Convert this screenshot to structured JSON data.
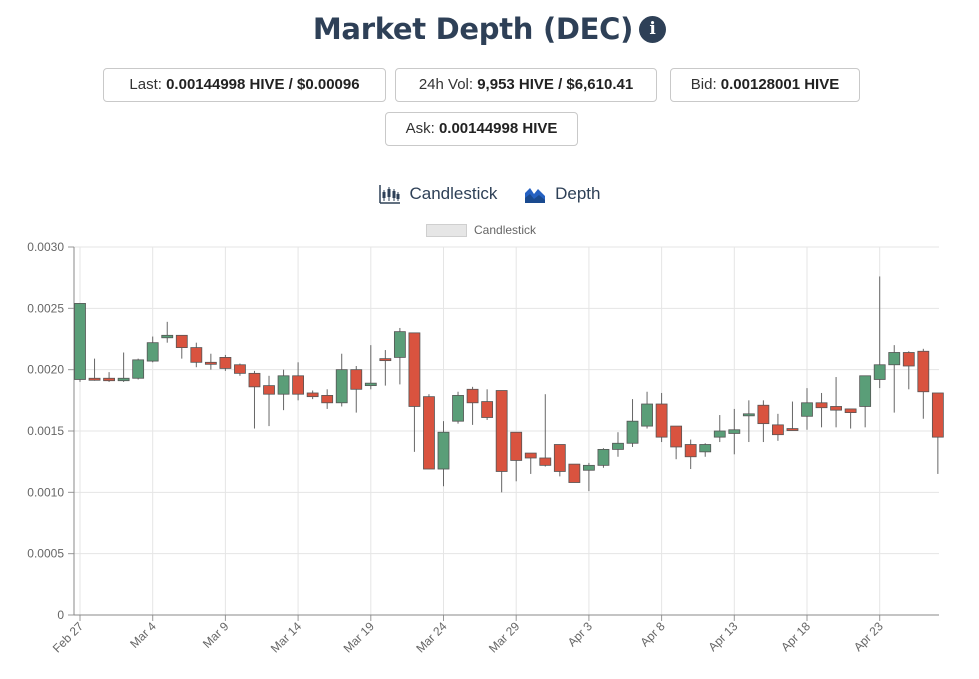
{
  "header": {
    "title": "Market Depth (DEC)",
    "info_icon": "info-circle-icon"
  },
  "stats": {
    "last_label": "Last:",
    "last_value": "0.00144998 HIVE / $0.00096",
    "vol_label": "24h Vol:",
    "vol_value": "9,953 HIVE / $6,610.41",
    "bid_label": "Bid:",
    "bid_value": "0.00128001 HIVE",
    "ask_label": "Ask:",
    "ask_value": "0.00144998 HIVE"
  },
  "tabs": {
    "candlestick_label": "Candlestick",
    "candlestick_icon": "candlestick-chart-icon",
    "depth_label": "Depth",
    "depth_icon": "area-chart-icon"
  },
  "colors": {
    "up": "#5a9e78",
    "down": "#d9533f",
    "wick": "#666666",
    "title": "#2e4057",
    "grid": "#e5e5e5"
  },
  "chart_data": {
    "type": "candlestick",
    "legend": [
      "Candlestick"
    ],
    "legend_position": "top-center",
    "grid": true,
    "ylim": [
      0,
      0.003
    ],
    "y_ticks": [
      "0.0030",
      "0.0025",
      "0.0020",
      "0.0015",
      "0.0010",
      "0.0005",
      "0"
    ],
    "x_tick_labels": [
      "Feb 27",
      "Mar 4",
      "Mar 9",
      "Mar 14",
      "Mar 19",
      "Mar 24",
      "Mar 29",
      "Apr 3",
      "Apr 8",
      "Apr 13",
      "Apr 18",
      "Apr 23"
    ],
    "x_tick_every": 5,
    "candles": [
      {
        "date": "Feb 27",
        "o": 0.00192,
        "h": 0.00254,
        "l": 0.0019,
        "c": 0.00254
      },
      {
        "date": "Feb 28",
        "o": 0.00193,
        "h": 0.00209,
        "l": 0.00191,
        "c": 0.00192
      },
      {
        "date": "Mar 1",
        "o": 0.00193,
        "h": 0.00198,
        "l": 0.0019,
        "c": 0.00191
      },
      {
        "date": "Mar 2",
        "o": 0.00191,
        "h": 0.00214,
        "l": 0.0019,
        "c": 0.00193
      },
      {
        "date": "Mar 3",
        "o": 0.00193,
        "h": 0.00209,
        "l": 0.00192,
        "c": 0.00208
      },
      {
        "date": "Mar 4",
        "o": 0.00207,
        "h": 0.00227,
        "l": 0.00206,
        "c": 0.00222
      },
      {
        "date": "Mar 5",
        "o": 0.00226,
        "h": 0.00239,
        "l": 0.00222,
        "c": 0.00228
      },
      {
        "date": "Mar 6",
        "o": 0.00228,
        "h": 0.00228,
        "l": 0.00209,
        "c": 0.00218
      },
      {
        "date": "Mar 7",
        "o": 0.00218,
        "h": 0.00222,
        "l": 0.00202,
        "c": 0.00206
      },
      {
        "date": "Mar 8",
        "o": 0.00206,
        "h": 0.00213,
        "l": 0.002,
        "c": 0.00205
      },
      {
        "date": "Mar 9",
        "o": 0.0021,
        "h": 0.00212,
        "l": 0.00199,
        "c": 0.00201
      },
      {
        "date": "Mar 10",
        "o": 0.00204,
        "h": 0.00205,
        "l": 0.00195,
        "c": 0.00197
      },
      {
        "date": "Mar 11",
        "o": 0.00197,
        "h": 0.00199,
        "l": 0.00152,
        "c": 0.00186
      },
      {
        "date": "Mar 12",
        "o": 0.00187,
        "h": 0.00195,
        "l": 0.00154,
        "c": 0.0018
      },
      {
        "date": "Mar 13",
        "o": 0.0018,
        "h": 0.002,
        "l": 0.00167,
        "c": 0.00195
      },
      {
        "date": "Mar 14",
        "o": 0.00195,
        "h": 0.00206,
        "l": 0.00175,
        "c": 0.0018
      },
      {
        "date": "Mar 15",
        "o": 0.00181,
        "h": 0.00183,
        "l": 0.00176,
        "c": 0.00178
      },
      {
        "date": "Mar 16",
        "o": 0.00179,
        "h": 0.00184,
        "l": 0.00168,
        "c": 0.00173
      },
      {
        "date": "Mar 17",
        "o": 0.00173,
        "h": 0.00213,
        "l": 0.0017,
        "c": 0.002
      },
      {
        "date": "Mar 18",
        "o": 0.002,
        "h": 0.00203,
        "l": 0.00165,
        "c": 0.00184
      },
      {
        "date": "Mar 19",
        "o": 0.00187,
        "h": 0.0022,
        "l": 0.00184,
        "c": 0.00189
      },
      {
        "date": "Mar 20",
        "o": 0.00209,
        "h": 0.00216,
        "l": 0.00187,
        "c": 0.00208
      },
      {
        "date": "Mar 21",
        "o": 0.0021,
        "h": 0.00234,
        "l": 0.00188,
        "c": 0.00231
      },
      {
        "date": "Mar 22",
        "o": 0.0023,
        "h": 0.0023,
        "l": 0.00133,
        "c": 0.0017
      },
      {
        "date": "Mar 23",
        "o": 0.00178,
        "h": 0.0018,
        "l": 0.00119,
        "c": 0.00119
      },
      {
        "date": "Mar 24",
        "o": 0.00119,
        "h": 0.00158,
        "l": 0.00105,
        "c": 0.00149
      },
      {
        "date": "Mar 25",
        "o": 0.00158,
        "h": 0.00182,
        "l": 0.00156,
        "c": 0.00179
      },
      {
        "date": "Mar 26",
        "o": 0.00184,
        "h": 0.00186,
        "l": 0.00155,
        "c": 0.00173
      },
      {
        "date": "Mar 27",
        "o": 0.00174,
        "h": 0.00184,
        "l": 0.00159,
        "c": 0.00161
      },
      {
        "date": "Mar 28",
        "o": 0.00183,
        "h": 0.00183,
        "l": 0.001,
        "c": 0.00117
      },
      {
        "date": "Mar 29",
        "o": 0.00149,
        "h": 0.00149,
        "l": 0.00109,
        "c": 0.00126
      },
      {
        "date": "Mar 30",
        "o": 0.00132,
        "h": 0.00132,
        "l": 0.00115,
        "c": 0.00128
      },
      {
        "date": "Mar 31",
        "o": 0.00128,
        "h": 0.0018,
        "l": 0.00121,
        "c": 0.00122
      },
      {
        "date": "Apr 1",
        "o": 0.00139,
        "h": 0.00139,
        "l": 0.00113,
        "c": 0.00117
      },
      {
        "date": "Apr 2",
        "o": 0.00123,
        "h": 0.00123,
        "l": 0.00108,
        "c": 0.00108
      },
      {
        "date": "Apr 3",
        "o": 0.00118,
        "h": 0.00124,
        "l": 0.00101,
        "c": 0.00122
      },
      {
        "date": "Apr 4",
        "o": 0.00122,
        "h": 0.00136,
        "l": 0.0012,
        "c": 0.00135
      },
      {
        "date": "Apr 5",
        "o": 0.00135,
        "h": 0.00149,
        "l": 0.00129,
        "c": 0.0014
      },
      {
        "date": "Apr 6",
        "o": 0.0014,
        "h": 0.00176,
        "l": 0.00137,
        "c": 0.00158
      },
      {
        "date": "Apr 7",
        "o": 0.00154,
        "h": 0.00182,
        "l": 0.00152,
        "c": 0.00172
      },
      {
        "date": "Apr 8",
        "o": 0.00172,
        "h": 0.00181,
        "l": 0.00141,
        "c": 0.00145
      },
      {
        "date": "Apr 9",
        "o": 0.00154,
        "h": 0.00154,
        "l": 0.00127,
        "c": 0.00137
      },
      {
        "date": "Apr 10",
        "o": 0.00139,
        "h": 0.00143,
        "l": 0.00119,
        "c": 0.00129
      },
      {
        "date": "Apr 11",
        "o": 0.00133,
        "h": 0.0014,
        "l": 0.00129,
        "c": 0.00139
      },
      {
        "date": "Apr 12",
        "o": 0.00145,
        "h": 0.00163,
        "l": 0.00141,
        "c": 0.0015
      },
      {
        "date": "Apr 13",
        "o": 0.00148,
        "h": 0.00168,
        "l": 0.00131,
        "c": 0.00151
      },
      {
        "date": "Apr 14",
        "o": 0.00164,
        "h": 0.00175,
        "l": 0.00141,
        "c": 0.00164
      },
      {
        "date": "Apr 15",
        "o": 0.00171,
        "h": 0.00175,
        "l": 0.00141,
        "c": 0.00156
      },
      {
        "date": "Apr 16",
        "o": 0.00155,
        "h": 0.00164,
        "l": 0.00142,
        "c": 0.00147
      },
      {
        "date": "Apr 17",
        "o": 0.00152,
        "h": 0.00174,
        "l": 0.00151,
        "c": 0.00151
      },
      {
        "date": "Apr 18",
        "o": 0.00162,
        "h": 0.00185,
        "l": 0.00151,
        "c": 0.00173
      },
      {
        "date": "Apr 19",
        "o": 0.00173,
        "h": 0.00181,
        "l": 0.00153,
        "c": 0.00169
      },
      {
        "date": "Apr 20",
        "o": 0.0017,
        "h": 0.00194,
        "l": 0.00153,
        "c": 0.00167
      },
      {
        "date": "Apr 21",
        "o": 0.00168,
        "h": 0.00168,
        "l": 0.00152,
        "c": 0.00165
      },
      {
        "date": "Apr 22",
        "o": 0.0017,
        "h": 0.00195,
        "l": 0.00153,
        "c": 0.00195
      },
      {
        "date": "Apr 23",
        "o": 0.00192,
        "h": 0.00276,
        "l": 0.00185,
        "c": 0.00204
      },
      {
        "date": "Apr 24",
        "o": 0.00204,
        "h": 0.0022,
        "l": 0.00165,
        "c": 0.00214
      },
      {
        "date": "Apr 25",
        "o": 0.00214,
        "h": 0.00215,
        "l": 0.00184,
        "c": 0.00203
      },
      {
        "date": "Apr 26",
        "o": 0.00215,
        "h": 0.00217,
        "l": 0.0016,
        "c": 0.00182
      },
      {
        "date": "Apr 27",
        "o": 0.00181,
        "h": 0.00181,
        "l": 0.00115,
        "c": 0.00145
      }
    ]
  }
}
